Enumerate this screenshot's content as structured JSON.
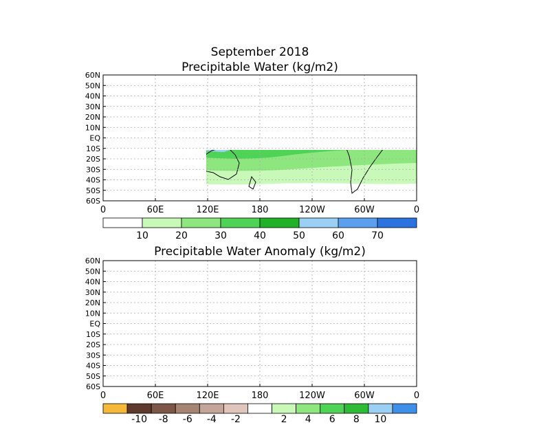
{
  "figure": {
    "title": "September 2018",
    "map1_title": "Precipitable Water (kg/m2)",
    "map2_title": "Precipitable Water Anomaly (kg/m2)"
  },
  "axes": {
    "lat_labels": [
      "60N",
      "50N",
      "40N",
      "30N",
      "20N",
      "10N",
      "EQ",
      "10S",
      "20S",
      "30S",
      "40S",
      "50S",
      "60S"
    ],
    "lon_labels": [
      "0",
      "60E",
      "120E",
      "180",
      "120W",
      "60W",
      "0"
    ]
  },
  "colorbar1": {
    "colors": [
      "#ffffff",
      "#c8f9b8",
      "#8ee77e",
      "#4fd356",
      "#20b128",
      "#9bcff3",
      "#5aa0ee",
      "#2b74e0"
    ],
    "labels": [
      "10",
      "20",
      "30",
      "40",
      "50",
      "60",
      "70"
    ]
  },
  "colorbar2": {
    "colors": [
      "#f5b93a",
      "#5d3a2c",
      "#7c5647",
      "#a68474",
      "#c4a59a",
      "#dfc5bb",
      "#ffffff",
      "#c8f9b8",
      "#8ee77e",
      "#4fd356",
      "#2fbb38",
      "#9bcff3",
      "#3f8fe8"
    ],
    "labels": [
      "-10",
      "-8",
      "-6",
      "-4",
      "-2",
      "2",
      "4",
      "6",
      "8",
      "10"
    ]
  },
  "map_colors": {
    "land_outline": "#000000",
    "grid": "#aaaaaa"
  }
}
